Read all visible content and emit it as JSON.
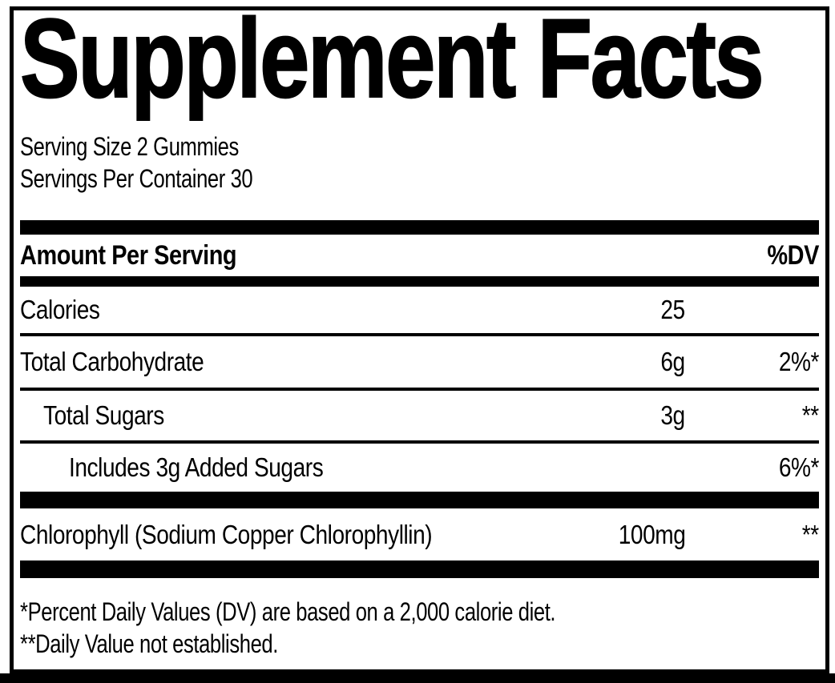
{
  "label": {
    "title": "Supplement Facts",
    "serving_size": "Serving Size 2 Gummies",
    "servings_per_container": "Servings Per Container 30",
    "columns": {
      "amount_header": "Amount Per Serving",
      "dv_header": "%DV"
    },
    "rows": [
      {
        "name": "Calories",
        "amount": "25",
        "dv": ""
      },
      {
        "name": "Total Carbohydrate",
        "amount": "6g",
        "dv": "2%*"
      },
      {
        "name": "Total Sugars",
        "amount": "3g",
        "dv": "**"
      },
      {
        "name": "Includes 3g Added Sugars",
        "amount": "",
        "dv": "6%*"
      },
      {
        "name": "Chlorophyll (Sodium Copper Chlorophyllin)",
        "amount": "100mg",
        "dv": "**"
      }
    ],
    "footnotes": [
      "*Percent Daily Values (DV) are based on a 2,000 calorie diet.",
      "**Daily Value not established."
    ],
    "colors": {
      "text": "#000000",
      "background": "#ffffff",
      "border": "#000000"
    }
  }
}
